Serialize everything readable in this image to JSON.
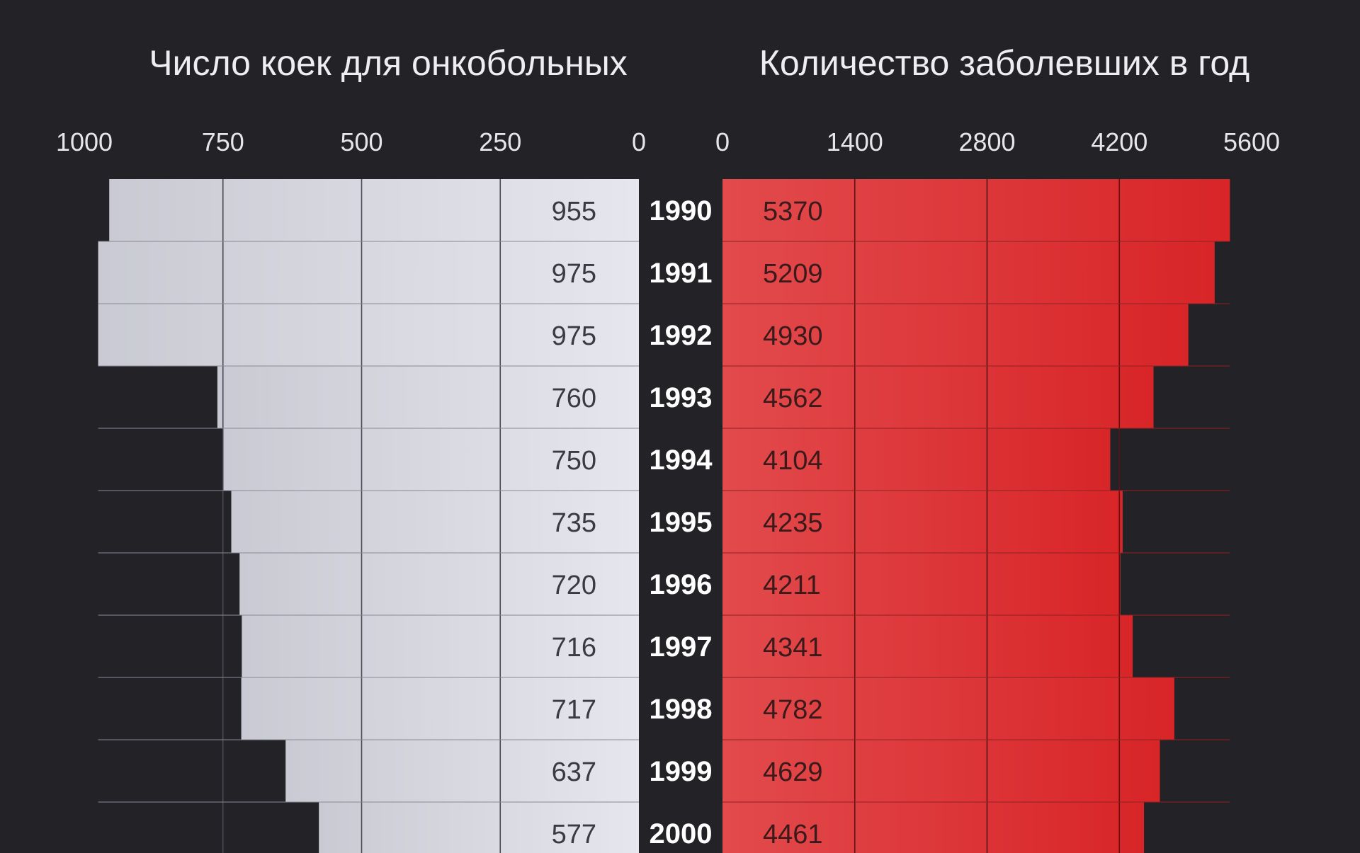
{
  "chart_data": {
    "type": "bar",
    "categories": [
      "1990",
      "1991",
      "1992",
      "1993",
      "1994",
      "1995",
      "1996",
      "1997",
      "1998",
      "1999",
      "2000"
    ],
    "left": {
      "title": "Число коек для онкобольных",
      "values": [
        955,
        975,
        975,
        760,
        750,
        735,
        720,
        716,
        717,
        637,
        577
      ],
      "ticks": [
        1000,
        750,
        500,
        250,
        0
      ],
      "tick_labels": [
        "1000",
        "750",
        "500",
        "250",
        "0"
      ],
      "xlim": [
        0,
        1000
      ]
    },
    "right": {
      "title": "Количество заболевших в год",
      "values": [
        5370,
        5209,
        4930,
        4562,
        4104,
        4235,
        4211,
        4341,
        4782,
        4629,
        4461
      ],
      "ticks": [
        0,
        1400,
        2800,
        4200,
        5600
      ],
      "tick_labels": [
        "0",
        "1400",
        "2800",
        "4200",
        "5600"
      ],
      "xlim": [
        0,
        5600
      ]
    },
    "colors": {
      "background": "#232227",
      "left_bar_start": "#c9cad3",
      "left_bar_end": "#e6e6ee",
      "right_bar_start": "#e24a4c",
      "right_bar_end": "#d82528",
      "left_value_text": "#3a3a42",
      "right_value_text": "#3a1a1a"
    },
    "grid": true
  }
}
